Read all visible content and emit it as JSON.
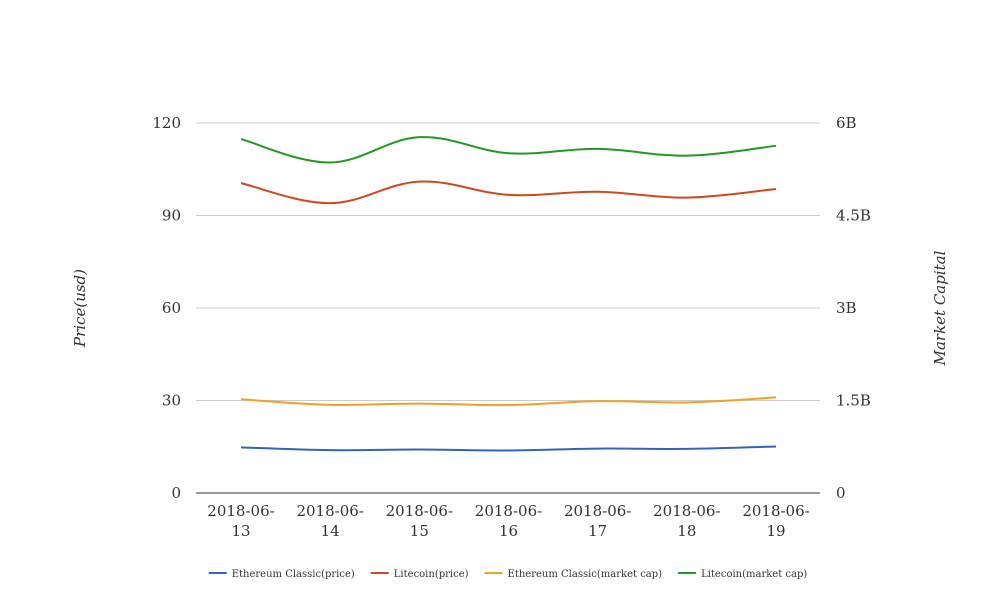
{
  "chart_data": {
    "type": "line",
    "categories": [
      "2018-06-13",
      "2018-06-14",
      "2018-06-15",
      "2018-06-16",
      "2018-06-17",
      "2018-06-18",
      "2018-06-19"
    ],
    "category_labels": [
      [
        "2018-06-",
        "13"
      ],
      [
        "2018-06-",
        "14"
      ],
      [
        "2018-06-",
        "15"
      ],
      [
        "2018-06-",
        "16"
      ],
      [
        "2018-06-",
        "17"
      ],
      [
        "2018-06-",
        "18"
      ],
      [
        "2018-06-",
        "19"
      ]
    ],
    "ylabel_left": "Price(usd)",
    "ylabel_right": "Market Capital",
    "ylim_left": [
      0,
      120
    ],
    "ylim_right": [
      0,
      6000000000
    ],
    "yticks_left": [
      "0",
      "30",
      "60",
      "90",
      "120"
    ],
    "yticks_right": [
      "0",
      "1.5B",
      "3B",
      "4.5B",
      "6B"
    ],
    "grid": true,
    "legend_position": "bottom",
    "series": [
      {
        "name": "Ethereum Classic(price)",
        "axis": "left",
        "color": "#3366bb",
        "values": [
          14.8,
          13.9,
          14.1,
          13.8,
          14.4,
          14.3,
          15.1
        ]
      },
      {
        "name": "Litecoin(price)",
        "axis": "left",
        "color": "#cc4a22",
        "values": [
          100.5,
          94.0,
          101.0,
          96.7,
          97.7,
          95.8,
          98.6
        ]
      },
      {
        "name": "Ethereum Classic(market cap)",
        "axis": "right",
        "color": "#f0a12a",
        "values": [
          1520000000,
          1430000000,
          1450000000,
          1425000000,
          1490000000,
          1470000000,
          1550000000
        ]
      },
      {
        "name": "Litecoin(market cap)",
        "axis": "right",
        "color": "#229922",
        "values": [
          5740000000,
          5360000000,
          5770000000,
          5510000000,
          5580000000,
          5470000000,
          5630000000
        ]
      }
    ]
  }
}
